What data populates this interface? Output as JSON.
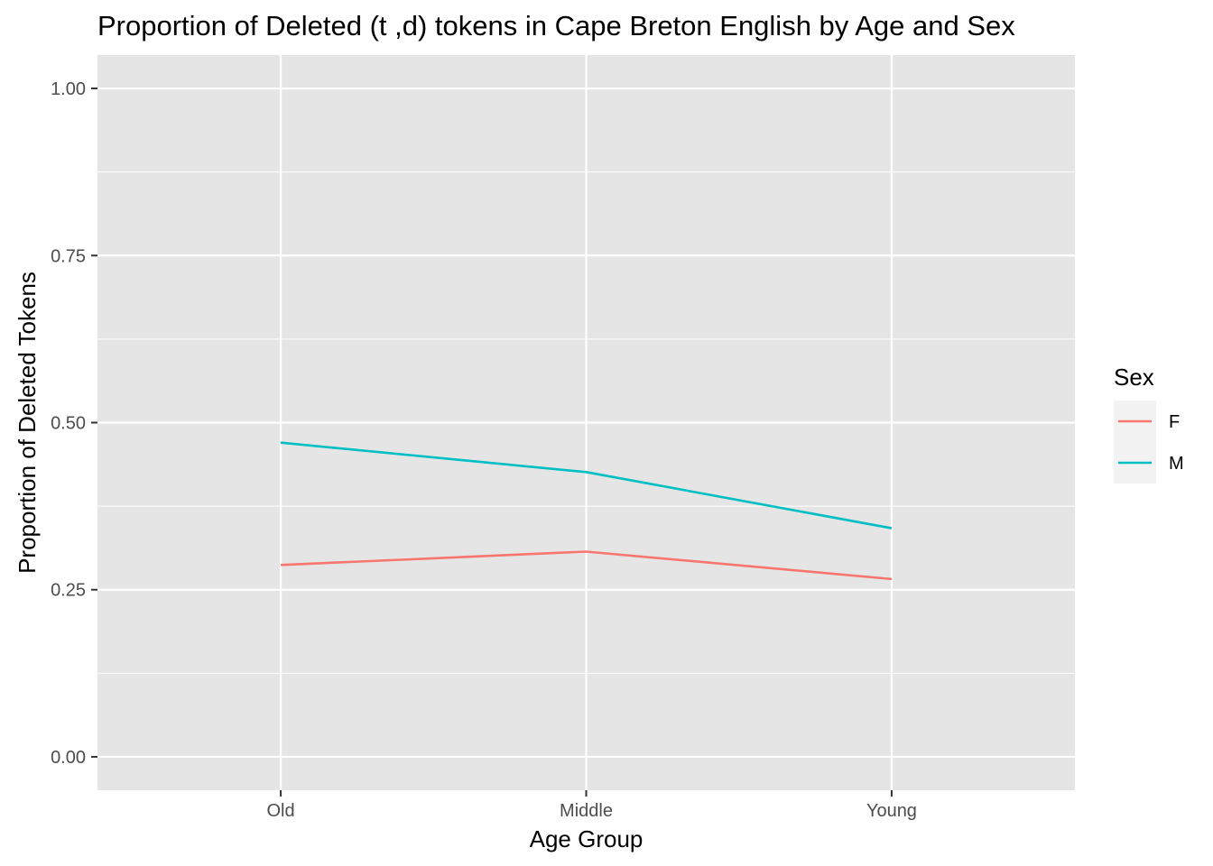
{
  "chart_data": {
    "type": "line",
    "title": "Proportion of Deleted (t ,d) tokens in Cape Breton English by Age and Sex",
    "xlabel": "Age Group",
    "ylabel": "Proportion of Deleted Tokens",
    "categories": [
      "Old",
      "Middle",
      "Young"
    ],
    "ylim": [
      -0.05,
      1.05
    ],
    "yticks": [
      0,
      0.25,
      0.5,
      0.75,
      1
    ],
    "ytick_labels": [
      "0.00",
      "0.25",
      "0.50",
      "0.75",
      "1.00"
    ],
    "grid": true,
    "panel_color": "#e5e5e5",
    "legend": {
      "title": "Sex",
      "placement": "right"
    },
    "series": [
      {
        "name": "F",
        "color": "#f8766d",
        "values": [
          0.287,
          0.307,
          0.266
        ]
      },
      {
        "name": "M",
        "color": "#00bfc4",
        "values": [
          0.47,
          0.426,
          0.342
        ]
      }
    ]
  }
}
